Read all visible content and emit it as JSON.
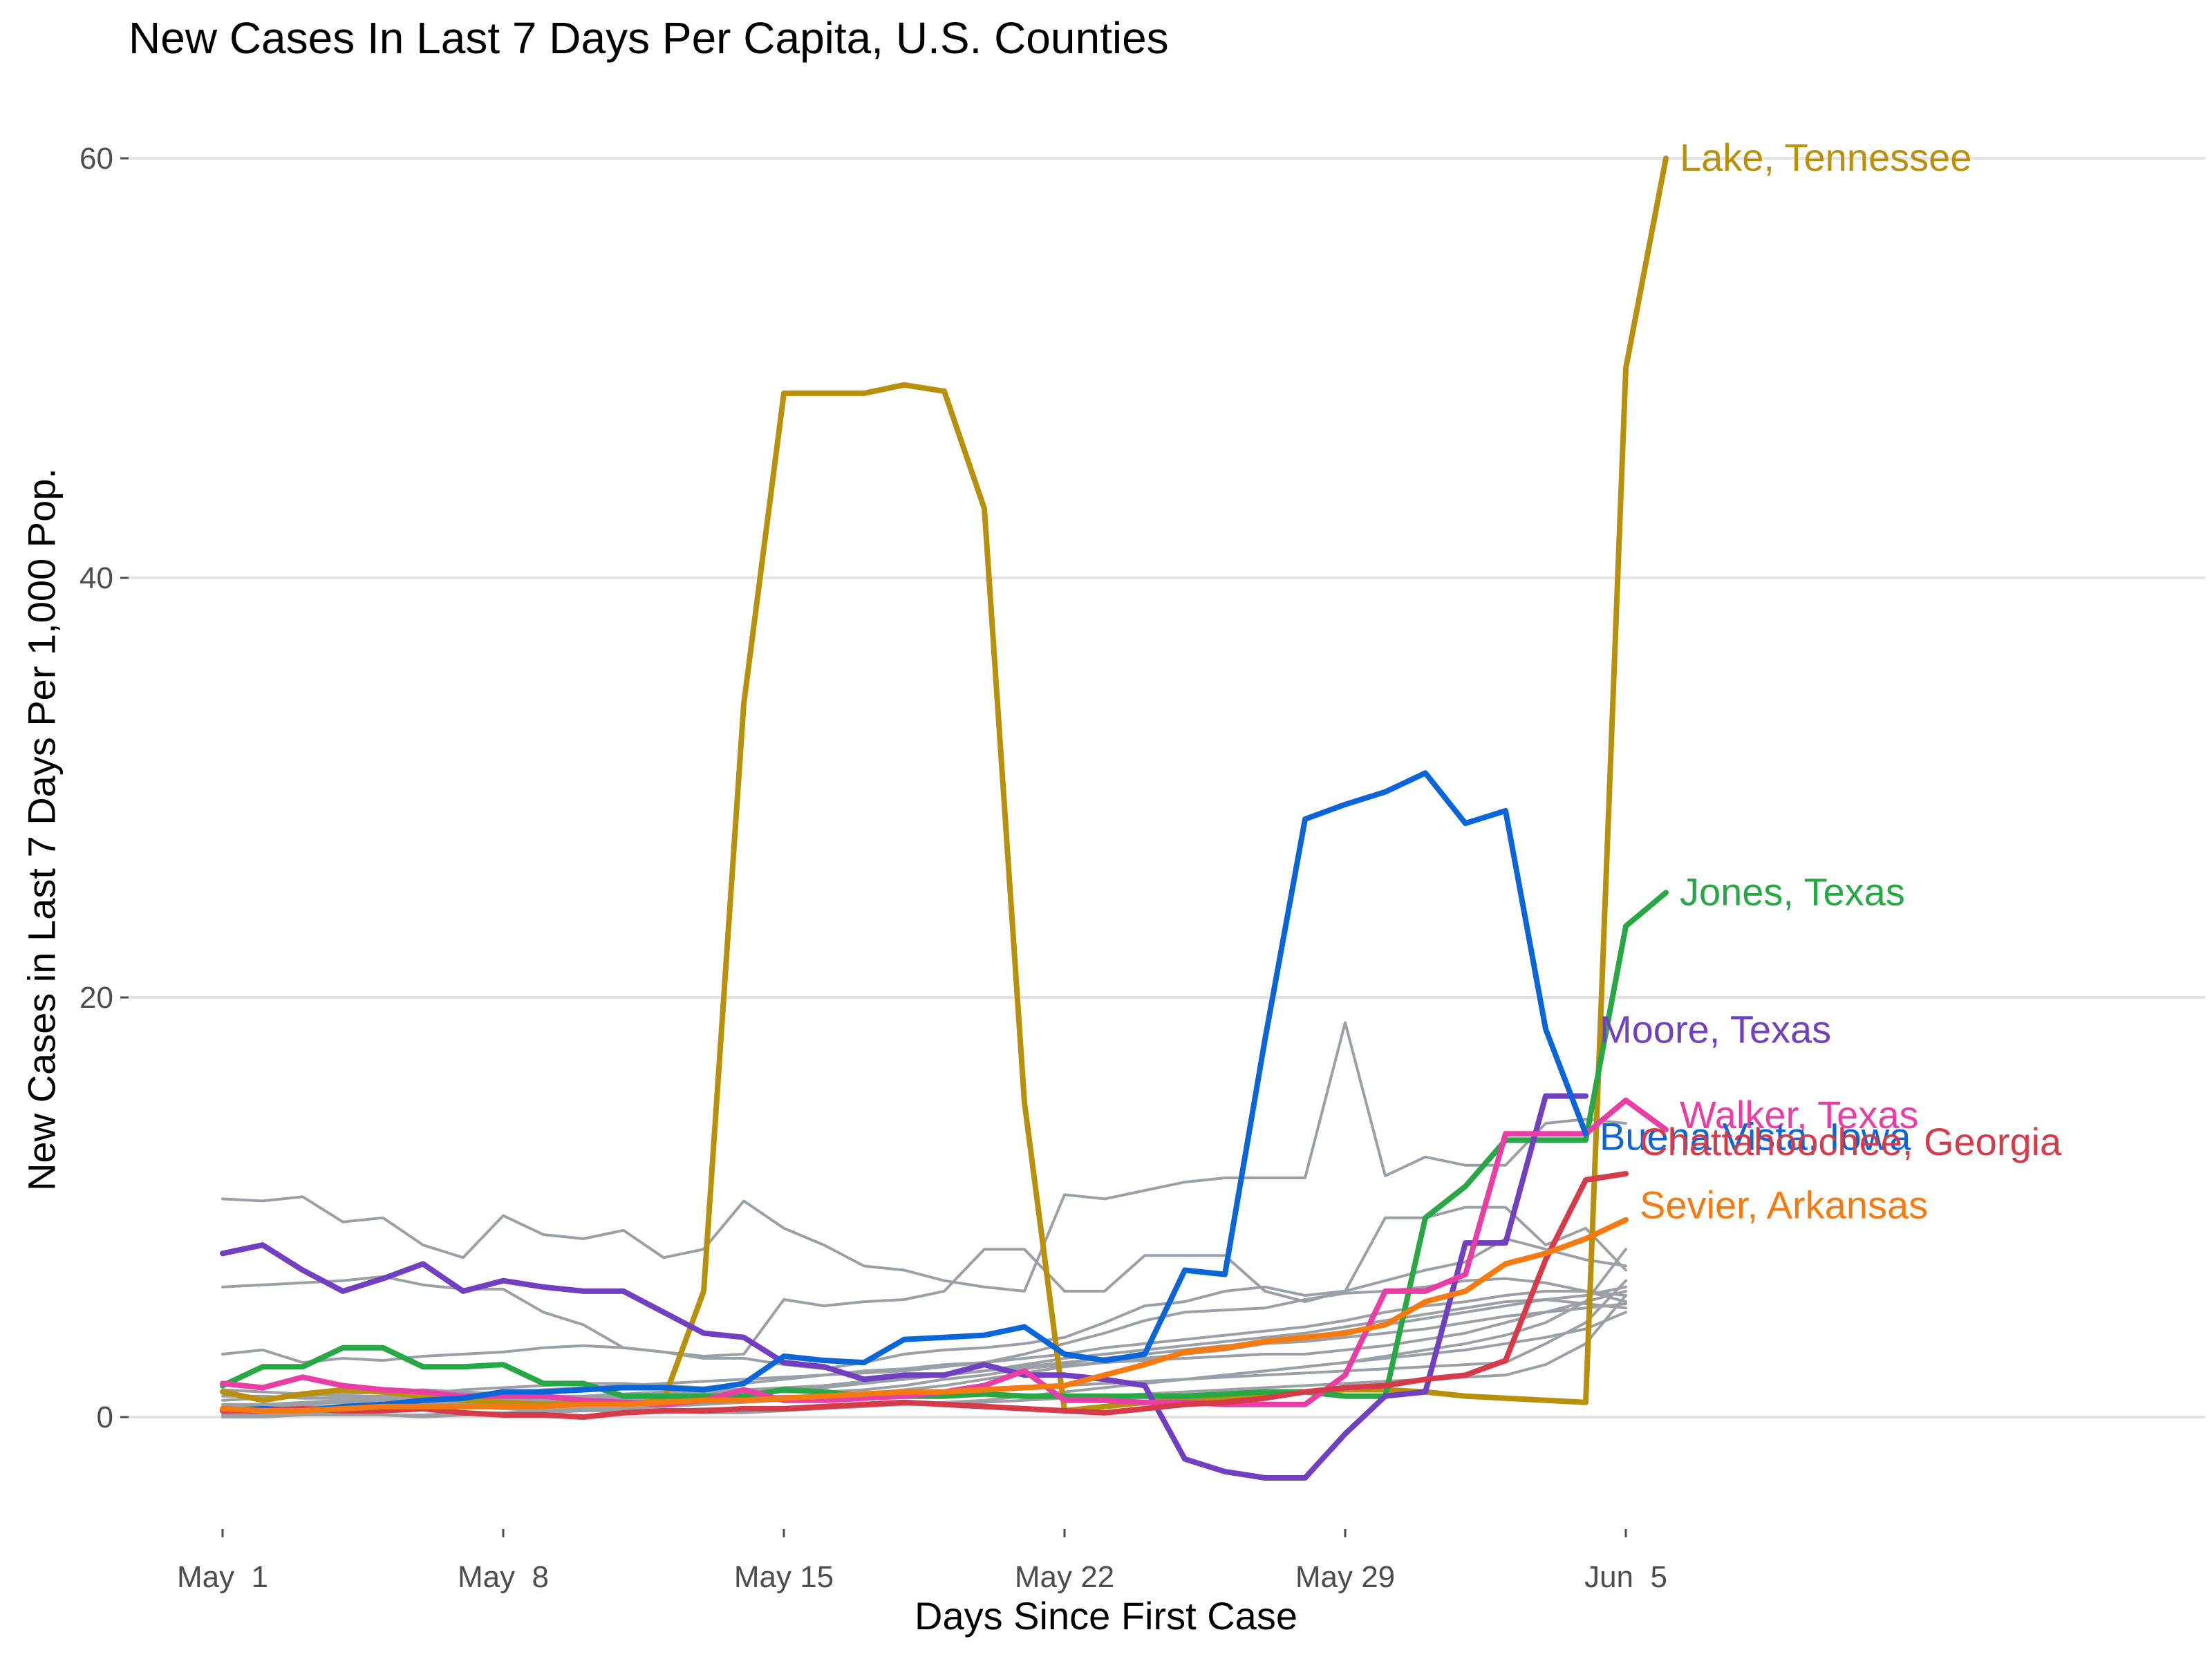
{
  "chart_data": {
    "type": "line",
    "title": "New Cases In Last 7 Days Per Capita, U.S. Counties",
    "xlabel": "Days Since First Case",
    "ylabel": "New Cases in Last 7 Days Per 1,000 Pop.",
    "grid": true,
    "x_ticks": [
      {
        "day": 0,
        "label": "May  1"
      },
      {
        "day": 7,
        "label": "May  8"
      },
      {
        "day": 14,
        "label": "May 15"
      },
      {
        "day": 21,
        "label": "May 22"
      },
      {
        "day": 28,
        "label": "May 29"
      },
      {
        "day": 35,
        "label": "Jun  5"
      }
    ],
    "y_ticks": [
      0,
      20,
      40,
      60
    ],
    "xlim": [
      "2020-04-30",
      "2020-06-15"
    ],
    "ylim": [
      -5,
      62
    ],
    "highlighted_series": [
      {
        "name": "Lake, Tennessee",
        "color": "#B8900A",
        "values": [
          1.2,
          0.8,
          1.1,
          1.3,
          1.2,
          1.0,
          0.8,
          0.7,
          0.6,
          0.7,
          0.6,
          0.8,
          6,
          34,
          48.8,
          48.8,
          48.8,
          49.2,
          48.9,
          43.3,
          15,
          0.3,
          0.5,
          0.7,
          0.8,
          0.9,
          1.0,
          1.2,
          1.3,
          1.3,
          1.2,
          1.0,
          0.9,
          0.8,
          0.7,
          50,
          60
        ]
      },
      {
        "name": "Jones, Texas",
        "color": "#28A745",
        "values": [
          1.5,
          2.4,
          2.4,
          3.3,
          3.3,
          2.4,
          2.4,
          2.5,
          1.6,
          1.6,
          1.0,
          1.0,
          1.0,
          1.0,
          1.3,
          1.2,
          1.0,
          1.0,
          1.0,
          1.1,
          1.0,
          1.0,
          1.0,
          1.0,
          1.0,
          1.1,
          1.2,
          1.2,
          1.0,
          1.0,
          9.5,
          11,
          13.2,
          13.2,
          13.2,
          23.4,
          25
        ]
      },
      {
        "name": "Moore, Texas",
        "color": "#7040C0",
        "values": [
          7.8,
          8.2,
          7.0,
          6.0,
          6.6,
          7.3,
          6.0,
          6.5,
          6.2,
          6.0,
          6.0,
          5.0,
          4.0,
          3.8,
          2.6,
          2.4,
          1.8,
          2.0,
          2.0,
          2.5,
          2.0,
          2.0,
          1.8,
          1.5,
          -2.0,
          -2.6,
          -2.9,
          -2.9,
          -0.8,
          1.0,
          1.2,
          8.3,
          8.3,
          15.3,
          15.3
        ]
      },
      {
        "name": "Walker, Texas",
        "color": "#E83EA6",
        "values": [
          1.6,
          1.4,
          1.9,
          1.5,
          1.3,
          1.2,
          1.0,
          1.0,
          1.0,
          0.8,
          0.7,
          0.6,
          0.8,
          1.3,
          0.8,
          0.8,
          0.9,
          1.0,
          1.2,
          1.5,
          2.2,
          0.8,
          0.8,
          0.7,
          0.7,
          0.6,
          0.6,
          0.6,
          2.0,
          6.0,
          6.0,
          6.8,
          13.5,
          13.5,
          13.5,
          15.1,
          13.7
        ]
      },
      {
        "name": "Buena Vista, Iowa",
        "color": "#0A66D8",
        "values": [
          0.3,
          0.4,
          0.3,
          0.5,
          0.6,
          0.8,
          0.9,
          1.2,
          1.2,
          1.3,
          1.4,
          1.4,
          1.3,
          1.6,
          2.9,
          2.7,
          2.6,
          3.7,
          3.8,
          3.9,
          4.3,
          3.0,
          2.7,
          3.0,
          7.0,
          6.8,
          18,
          28.5,
          29.2,
          29.8,
          30.7,
          28.3,
          28.9,
          18.5,
          13.5
        ]
      },
      {
        "name": "Chattahoochee, Georgia",
        "color": "#D63B4A",
        "values": [
          0.3,
          0.3,
          0.4,
          0.3,
          0.3,
          0.4,
          0.2,
          0.1,
          0.1,
          0.0,
          0.2,
          0.3,
          0.3,
          0.4,
          0.4,
          0.5,
          0.6,
          0.7,
          0.6,
          0.5,
          0.4,
          0.3,
          0.2,
          0.4,
          0.6,
          0.7,
          0.9,
          1.2,
          1.4,
          1.5,
          1.8,
          2.0,
          2.7,
          7.5,
          11.3,
          11.6
        ]
      },
      {
        "name": "Sevier, Arkansas",
        "color": "#F57A10",
        "values": [
          0.4,
          0.3,
          0.3,
          0.4,
          0.5,
          0.5,
          0.5,
          0.5,
          0.5,
          0.6,
          0.6,
          0.7,
          0.8,
          0.8,
          0.9,
          1.0,
          1.1,
          1.2,
          1.2,
          1.3,
          1.4,
          1.5,
          2.0,
          2.5,
          3.1,
          3.3,
          3.6,
          3.8,
          4.0,
          4.4,
          5.5,
          6.0,
          7.3,
          7.8,
          8.5,
          9.4
        ]
      }
    ],
    "background_series_color": "#9AA0A6",
    "background_series": [
      [
        10.4,
        10.3,
        10.5,
        9.3,
        9.5,
        8.2,
        7.6,
        9.6,
        8.7,
        8.5,
        8.9,
        7.6,
        8.0,
        10.3,
        9.0,
        8.2,
        7.2,
        7.0,
        6.5,
        6.2,
        6.0,
        10.6,
        10.4,
        10.8,
        11.2,
        11.4,
        11.4,
        11.4,
        18.8,
        11.5,
        12.4,
        12.0,
        12.0,
        14.0,
        14.2,
        14.0
      ],
      [
        6.2,
        6.3,
        6.4,
        6.5,
        6.7,
        6.3,
        6.1,
        6.1,
        5.0,
        4.4,
        3.3,
        3.1,
        2.9,
        3.0,
        5.6,
        5.3,
        5.5,
        5.6,
        6.0,
        8.0,
        8.0,
        6.0,
        6.0,
        7.7,
        7.7,
        7.7,
        6.0,
        5.5,
        6.0,
        9.5,
        9.5,
        10.0,
        10.0,
        8.2,
        9.0,
        7.0
      ],
      [
        3.0,
        3.2,
        2.6,
        2.8,
        2.7,
        2.9,
        3.0,
        3.1,
        3.3,
        3.4,
        3.3,
        3.1,
        2.8,
        2.8,
        2.5,
        2.3,
        2.6,
        3.0,
        3.2,
        3.3,
        3.5,
        3.8,
        4.5,
        5.3,
        5.5,
        6.0,
        6.2,
        5.8,
        6.0,
        6.5,
        7.0,
        7.4,
        8.5,
        8.0,
        7.5,
        7.2
      ],
      [
        0.8,
        0.9,
        1.0,
        1.1,
        1.2,
        1.3,
        1.2,
        1.1,
        1.0,
        1.0,
        1.1,
        1.2,
        1.4,
        1.6,
        1.8,
        2.0,
        2.2,
        2.3,
        2.5,
        2.6,
        3.0,
        3.5,
        4.0,
        4.6,
        5.0,
        5.1,
        5.2,
        5.6,
        5.9,
        6.0,
        6.2,
        6.5,
        6.6,
        6.4,
        6.0,
        5.5
      ],
      [
        0.5,
        0.5,
        0.6,
        0.7,
        0.8,
        0.9,
        1.0,
        1.1,
        1.3,
        1.4,
        1.5,
        1.6,
        1.7,
        1.8,
        1.9,
        2.0,
        2.1,
        2.2,
        2.4,
        2.6,
        2.8,
        3.0,
        3.3,
        3.5,
        3.7,
        3.9,
        4.1,
        4.3,
        4.6,
        5.0,
        5.3,
        5.5,
        5.8,
        6.0,
        6.0,
        5.8
      ],
      [
        0.2,
        0.3,
        0.3,
        0.4,
        0.5,
        0.6,
        0.6,
        0.7,
        0.8,
        0.9,
        1.0,
        1.1,
        1.2,
        1.3,
        1.4,
        1.5,
        1.7,
        1.9,
        2.0,
        2.2,
        2.5,
        2.8,
        3.0,
        3.2,
        3.4,
        3.6,
        3.8,
        4.0,
        4.3,
        4.6,
        4.9,
        5.2,
        5.5,
        5.6,
        5.4,
        5.2
      ],
      [
        1.0,
        1.0,
        0.9,
        0.9,
        1.0,
        1.1,
        1.3,
        1.4,
        1.5,
        1.6,
        1.6,
        1.5,
        1.4,
        1.3,
        1.2,
        1.2,
        1.3,
        1.5,
        1.8,
        2.0,
        2.3,
        2.5,
        2.6,
        2.7,
        2.8,
        2.9,
        3.0,
        3.0,
        3.2,
        3.4,
        3.7,
        4.0,
        4.5,
        5.0,
        5.5,
        6.0
      ],
      [
        0.6,
        0.6,
        0.7,
        0.8,
        0.9,
        1.0,
        1.0,
        0.9,
        0.8,
        0.7,
        0.6,
        0.6,
        0.7,
        0.8,
        0.9,
        1.0,
        1.1,
        1.3,
        1.5,
        1.8,
        2.1,
        2.4,
        2.6,
        2.8,
        3.0,
        3.2,
        3.5,
        3.8,
        4.1,
        4.4,
        4.7,
        5.0,
        5.3,
        5.6,
        5.8,
        6.2
      ],
      [
        0.1,
        0.1,
        0.2,
        0.2,
        0.1,
        0.0,
        0.1,
        0.2,
        0.3,
        0.4,
        0.4,
        0.3,
        0.2,
        0.2,
        0.3,
        0.4,
        0.5,
        0.6,
        0.7,
        0.8,
        1.0,
        1.2,
        1.4,
        1.6,
        1.8,
        2.0,
        2.2,
        2.4,
        2.6,
        2.8,
        3.0,
        3.2,
        3.5,
        3.8,
        4.2,
        5.0
      ],
      [
        0.3,
        0.2,
        0.2,
        0.3,
        0.4,
        0.5,
        0.5,
        0.4,
        0.3,
        0.3,
        0.4,
        0.5,
        0.6,
        0.7,
        0.8,
        0.9,
        1.0,
        1.1,
        1.2,
        1.3,
        1.4,
        1.5,
        1.6,
        1.7,
        1.8,
        1.9,
        2.0,
        2.1,
        2.2,
        2.3,
        2.4,
        2.5,
        2.6,
        3.5,
        4.5,
        6.5
      ],
      [
        0.4,
        0.5,
        0.5,
        0.5,
        0.6,
        0.6,
        0.7,
        0.7,
        0.7,
        0.8,
        0.8,
        0.8,
        0.9,
        0.9,
        1.0,
        1.0,
        1.1,
        1.1,
        1.2,
        1.3,
        1.4,
        1.5,
        1.6,
        1.7,
        1.8,
        2.0,
        2.2,
        2.4,
        2.6,
        2.9,
        3.2,
        3.5,
        3.9,
        4.5,
        5.5,
        8.0
      ],
      [
        1.3,
        1.2,
        1.1,
        1.0,
        1.0,
        0.9,
        0.9,
        0.8,
        0.8,
        0.8,
        0.9,
        1.0,
        1.1,
        1.2,
        1.3,
        1.4,
        1.6,
        1.8,
        2.0,
        2.2,
        2.4,
        2.6,
        2.8,
        3.0,
        3.2,
        3.4,
        3.5,
        3.6,
        3.8,
        4.0,
        4.2,
        4.5,
        4.8,
        5.0,
        5.2,
        5.4
      ],
      [
        0.0,
        0.0,
        0.1,
        0.1,
        0.1,
        0.1,
        0.2,
        0.2,
        0.2,
        0.3,
        0.3,
        0.3,
        0.4,
        0.4,
        0.4,
        0.5,
        0.5,
        0.6,
        0.6,
        0.7,
        0.8,
        0.9,
        1.0,
        1.1,
        1.2,
        1.3,
        1.4,
        1.5,
        1.6,
        1.7,
        1.8,
        1.9,
        2.0,
        2.5,
        3.5,
        5.8
      ]
    ]
  }
}
